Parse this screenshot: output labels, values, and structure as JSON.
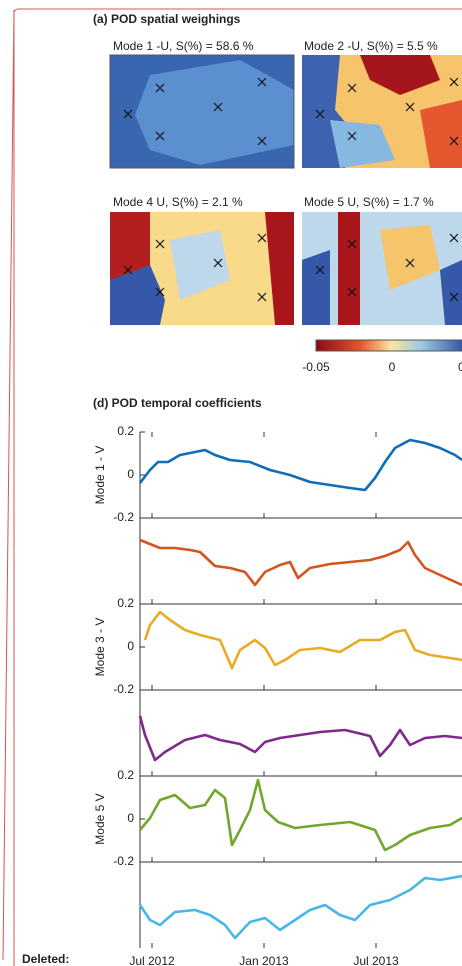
{
  "figure": {
    "panel_a": {
      "title": "(a) POD spatial weighings",
      "maps": [
        "Mode 1 -U, S(%) = 58.6 %",
        "Mode 2 -U, S(%) = 5.5 %",
        "Mode 4 U, S(%) = 2.1 %",
        "Mode 5 U, S(%) = 1.7 %"
      ],
      "colorbar": [
        "-0.05",
        "0",
        "0"
      ]
    },
    "panel_d": {
      "title": "(d) POD temporal coefficients",
      "yticks": [
        "0.2",
        "0",
        "-0.2"
      ],
      "ylabels": [
        "Mode 1 - V",
        "Mode 3 - V",
        "Mode 5 V"
      ],
      "xticks": [
        "Jul 2012",
        "Jan 2013",
        "Jul 2013"
      ]
    }
  },
  "revision": {
    "label": "Deleted:"
  }
}
